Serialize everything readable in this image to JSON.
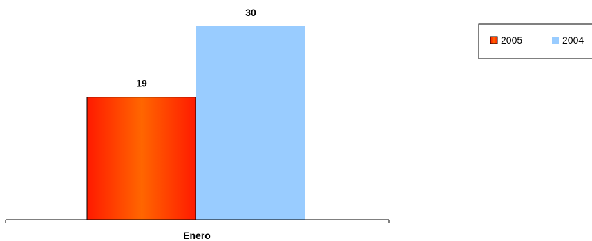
{
  "chart_data": {
    "type": "bar",
    "categories": [
      "Enero"
    ],
    "series": [
      {
        "name": "2005",
        "values": [
          19
        ],
        "color": "#ff3300",
        "fill": "gradient-red-orange"
      },
      {
        "name": "2004",
        "values": [
          30
        ],
        "color": "#99ccff"
      }
    ],
    "title": "",
    "xlabel": "",
    "ylabel": "",
    "ylim": [
      0,
      30
    ],
    "grid": false,
    "legend": "top-right",
    "data_labels": true
  }
}
